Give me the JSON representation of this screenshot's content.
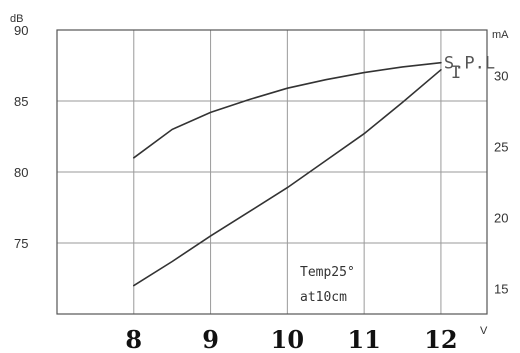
{
  "chart_data": {
    "type": "line",
    "x_unit": "V",
    "left_unit": "dB",
    "right_unit": "mA",
    "x_ticks": [
      "8",
      "9",
      "10",
      "11",
      "12"
    ],
    "left_ticks": [
      "90",
      "85",
      "80",
      "75"
    ],
    "right_ticks": [
      "30",
      "25",
      "20",
      "15"
    ],
    "xlim": [
      7,
      12.6
    ],
    "left_ylim": [
      70,
      90
    ],
    "right_ylim": [
      13.2,
      33.2
    ],
    "series": [
      {
        "name": "S.P.L",
        "axis": "left",
        "x": [
          8,
          8.5,
          9,
          9.5,
          10,
          10.5,
          11,
          11.5,
          12
        ],
        "y": [
          81.0,
          83.0,
          84.2,
          85.1,
          85.9,
          86.5,
          87.0,
          87.4,
          87.7
        ]
      },
      {
        "name": "I",
        "axis": "right",
        "x": [
          8,
          8.5,
          9,
          9.5,
          10,
          10.5,
          11,
          11.5,
          12
        ],
        "y": [
          15.2,
          16.9,
          18.7,
          20.4,
          22.1,
          24.0,
          25.9,
          28.1,
          30.4
        ]
      }
    ],
    "annotation": [
      "Temp25°",
      "at10cm"
    ],
    "grid": true
  }
}
